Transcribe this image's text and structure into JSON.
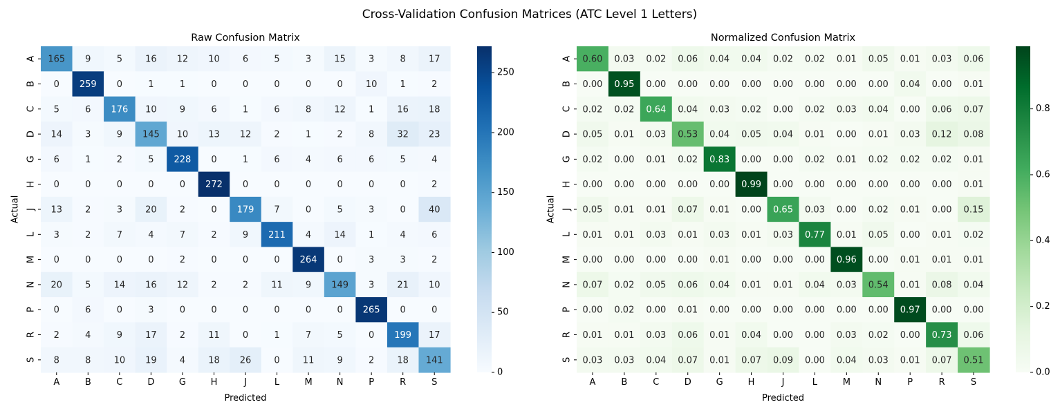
{
  "suptitle": "Cross-Validation Confusion Matrices (ATC Level 1 Letters)",
  "chart_data": [
    {
      "type": "heatmap",
      "title": "Raw Confusion Matrix",
      "xlabel": "Predicted",
      "ylabel": "Actual",
      "x_categories": [
        "A",
        "B",
        "C",
        "D",
        "G",
        "H",
        "J",
        "L",
        "M",
        "N",
        "P",
        "R",
        "S"
      ],
      "y_categories": [
        "A",
        "B",
        "C",
        "D",
        "G",
        "H",
        "J",
        "L",
        "M",
        "N",
        "P",
        "R",
        "S"
      ],
      "colormap": "Blues",
      "colormap_stops": [
        "#f7fbff",
        "#deebf7",
        "#c6dbef",
        "#9ecae1",
        "#6baed6",
        "#4292c6",
        "#2171b5",
        "#08519c",
        "#08306b"
      ],
      "vmin": 0,
      "vmax": 272,
      "value_format": "integer",
      "colorbar_ticks": [
        0,
        50,
        100,
        150,
        200,
        250
      ],
      "colorbar_tick_labels": [
        "0",
        "50",
        "100",
        "150",
        "200",
        "250"
      ],
      "values": [
        [
          165,
          9,
          5,
          16,
          12,
          10,
          6,
          5,
          3,
          15,
          3,
          8,
          17
        ],
        [
          0,
          259,
          0,
          1,
          1,
          0,
          0,
          0,
          0,
          0,
          10,
          1,
          2
        ],
        [
          5,
          6,
          176,
          10,
          9,
          6,
          1,
          6,
          8,
          12,
          1,
          16,
          18
        ],
        [
          14,
          3,
          9,
          145,
          10,
          13,
          12,
          2,
          1,
          2,
          8,
          32,
          23
        ],
        [
          6,
          1,
          2,
          5,
          228,
          0,
          1,
          6,
          4,
          6,
          6,
          5,
          4
        ],
        [
          0,
          0,
          0,
          0,
          0,
          272,
          0,
          0,
          0,
          0,
          0,
          0,
          2
        ],
        [
          13,
          2,
          3,
          20,
          2,
          0,
          179,
          7,
          0,
          5,
          3,
          0,
          40
        ],
        [
          3,
          2,
          7,
          4,
          7,
          2,
          9,
          211,
          4,
          14,
          1,
          4,
          6
        ],
        [
          0,
          0,
          0,
          0,
          2,
          0,
          0,
          0,
          264,
          0,
          3,
          3,
          2
        ],
        [
          20,
          5,
          14,
          16,
          12,
          2,
          2,
          11,
          9,
          149,
          3,
          21,
          10
        ],
        [
          0,
          6,
          0,
          3,
          0,
          0,
          0,
          0,
          0,
          0,
          265,
          0,
          0
        ],
        [
          2,
          4,
          9,
          17,
          2,
          11,
          0,
          1,
          7,
          5,
          0,
          199,
          17
        ],
        [
          8,
          8,
          10,
          19,
          4,
          18,
          26,
          0,
          11,
          9,
          2,
          18,
          141
        ]
      ]
    },
    {
      "type": "heatmap",
      "title": "Normalized Confusion Matrix",
      "xlabel": "Predicted",
      "ylabel": "Actual",
      "x_categories": [
        "A",
        "B",
        "C",
        "D",
        "G",
        "H",
        "J",
        "L",
        "M",
        "N",
        "P",
        "R",
        "S"
      ],
      "y_categories": [
        "A",
        "B",
        "C",
        "D",
        "G",
        "H",
        "J",
        "L",
        "M",
        "N",
        "P",
        "R",
        "S"
      ],
      "colormap": "Greens",
      "colormap_stops": [
        "#f7fcf5",
        "#e5f5e0",
        "#c7e9c0",
        "#a1d99b",
        "#74c476",
        "#41ab5d",
        "#238b45",
        "#006d2c",
        "#00441b"
      ],
      "vmin": 0,
      "vmax": 0.99,
      "value_format": "2 decimals",
      "colorbar_ticks": [
        0,
        0.2,
        0.4,
        0.6,
        0.8
      ],
      "colorbar_tick_labels": [
        "0.0",
        "0.2",
        "0.4",
        "0.6",
        "0.8"
      ],
      "values": [
        [
          0.6,
          0.03,
          0.02,
          0.06,
          0.04,
          0.04,
          0.02,
          0.02,
          0.01,
          0.05,
          0.01,
          0.03,
          0.06
        ],
        [
          0.0,
          0.95,
          0.0,
          0.0,
          0.0,
          0.0,
          0.0,
          0.0,
          0.0,
          0.0,
          0.04,
          0.0,
          0.01
        ],
        [
          0.02,
          0.02,
          0.64,
          0.04,
          0.03,
          0.02,
          0.0,
          0.02,
          0.03,
          0.04,
          0.0,
          0.06,
          0.07
        ],
        [
          0.05,
          0.01,
          0.03,
          0.53,
          0.04,
          0.05,
          0.04,
          0.01,
          0.0,
          0.01,
          0.03,
          0.12,
          0.08
        ],
        [
          0.02,
          0.0,
          0.01,
          0.02,
          0.83,
          0.0,
          0.0,
          0.02,
          0.01,
          0.02,
          0.02,
          0.02,
          0.01
        ],
        [
          0.0,
          0.0,
          0.0,
          0.0,
          0.0,
          0.99,
          0.0,
          0.0,
          0.0,
          0.0,
          0.0,
          0.0,
          0.01
        ],
        [
          0.05,
          0.01,
          0.01,
          0.07,
          0.01,
          0.0,
          0.65,
          0.03,
          0.0,
          0.02,
          0.01,
          0.0,
          0.15
        ],
        [
          0.01,
          0.01,
          0.03,
          0.01,
          0.03,
          0.01,
          0.03,
          0.77,
          0.01,
          0.05,
          0.0,
          0.01,
          0.02
        ],
        [
          0.0,
          0.0,
          0.0,
          0.0,
          0.01,
          0.0,
          0.0,
          0.0,
          0.96,
          0.0,
          0.01,
          0.01,
          0.01
        ],
        [
          0.07,
          0.02,
          0.05,
          0.06,
          0.04,
          0.01,
          0.01,
          0.04,
          0.03,
          0.54,
          0.01,
          0.08,
          0.04
        ],
        [
          0.0,
          0.02,
          0.0,
          0.01,
          0.0,
          0.0,
          0.0,
          0.0,
          0.0,
          0.0,
          0.97,
          0.0,
          0.0
        ],
        [
          0.01,
          0.01,
          0.03,
          0.06,
          0.01,
          0.04,
          0.0,
          0.0,
          0.03,
          0.02,
          0.0,
          0.73,
          0.06
        ],
        [
          0.03,
          0.03,
          0.04,
          0.07,
          0.01,
          0.07,
          0.09,
          0.0,
          0.04,
          0.03,
          0.01,
          0.07,
          0.51
        ]
      ]
    }
  ]
}
